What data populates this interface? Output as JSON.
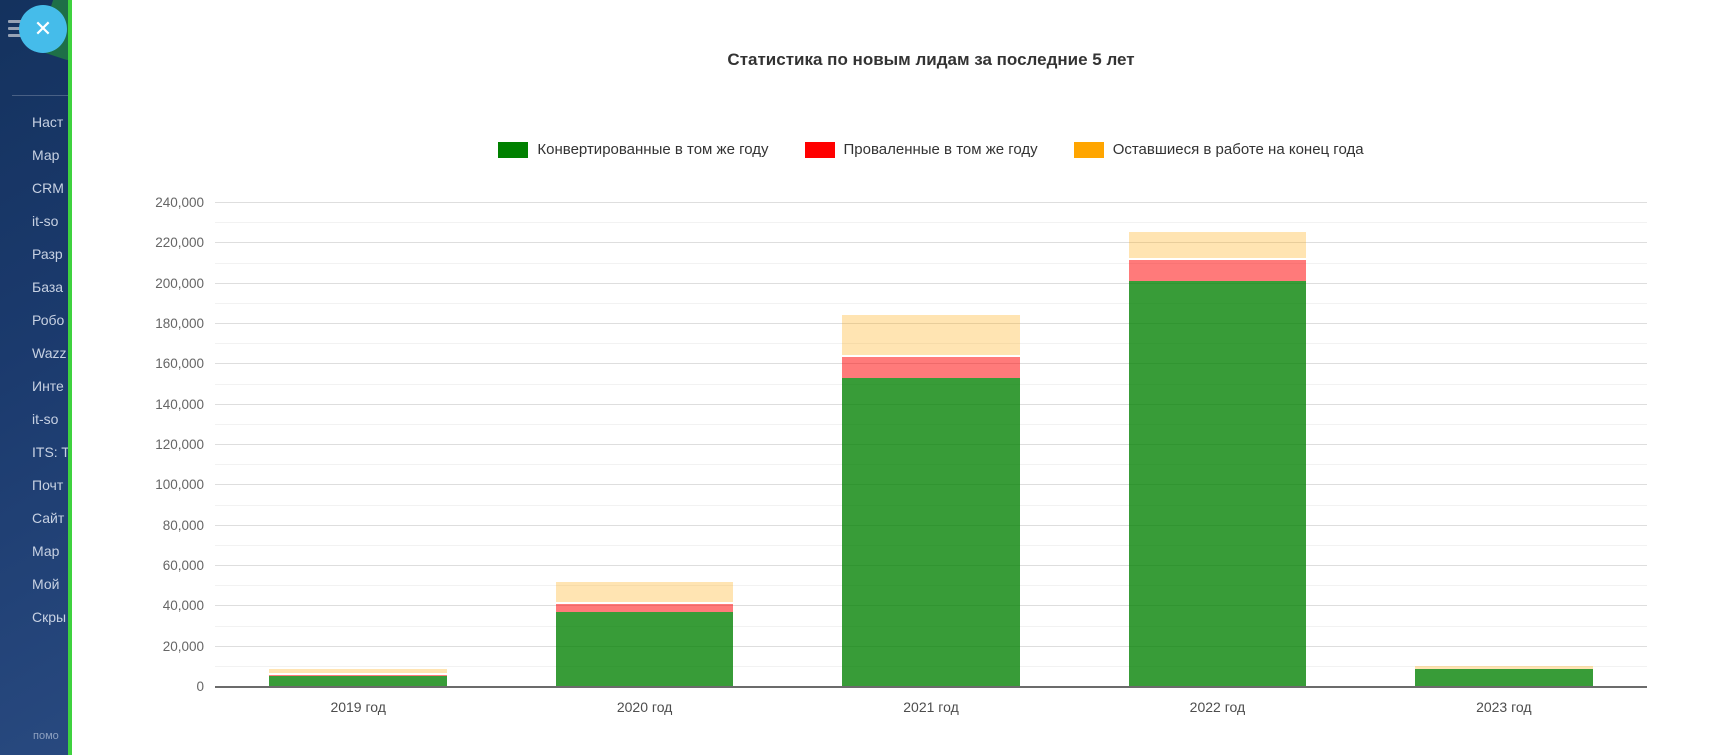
{
  "sidebar": {
    "close_button": "✕",
    "items": [
      "Наст",
      "Мар",
      "CRM",
      "it-so",
      "Разр",
      "База",
      "Робо",
      "Wazz",
      "Инте",
      "it-so",
      "ITS: T",
      "Почт",
      "Сайт",
      "Мар",
      "Мой",
      "Скры"
    ],
    "footer": "помо"
  },
  "chart": {
    "title": "Статистика по новым лидам за последние 5 лет",
    "legend": [
      {
        "label": "Конвертированные в том же году",
        "color": "#008000"
      },
      {
        "label": "Проваленные в том же году",
        "color": "#ff0000"
      },
      {
        "label": "Оставшиеся в работе на конец года",
        "color": "#ffa500"
      }
    ]
  },
  "chart_data": {
    "type": "bar",
    "stacked": true,
    "title": "Статистика по новым лидам за последние 5 лет",
    "categories": [
      "2019 год",
      "2020 год",
      "2021 год",
      "2022 год",
      "2023 год"
    ],
    "series": [
      {
        "name": "Конвертированные в том же году",
        "legend_color": "#008000",
        "fill": "rgba(0,128,0,0.78)",
        "values": [
          5500,
          37000,
          153000,
          201500,
          9000
        ]
      },
      {
        "name": "Проваленные в том же году",
        "legend_color": "#ff0000",
        "fill": "rgba(255,0,0,0.52)",
        "values": [
          1500,
          5000,
          11500,
          11000,
          0
        ]
      },
      {
        "name": "Оставшиеся в работе на конец года",
        "legend_color": "#ffa500",
        "fill": "rgba(255,165,0,0.30)",
        "values": [
          3000,
          11000,
          21000,
          14000,
          2500
        ]
      }
    ],
    "totals": [
      10000,
      53000,
      185500,
      226500,
      11500
    ],
    "ylim": [
      0,
      240000
    ],
    "ytick_step": 20000,
    "grid_minor_step": 10000,
    "legend_position": "top",
    "grid": true
  },
  "colors": {
    "sidebar_bg": "#1b3a6d",
    "resize_handle": "#3fd23f",
    "close_button_bg": "#45bcea",
    "grid_major": "#dedede",
    "grid_minor": "#f2f2f2",
    "axis": "#6b6b6b"
  }
}
